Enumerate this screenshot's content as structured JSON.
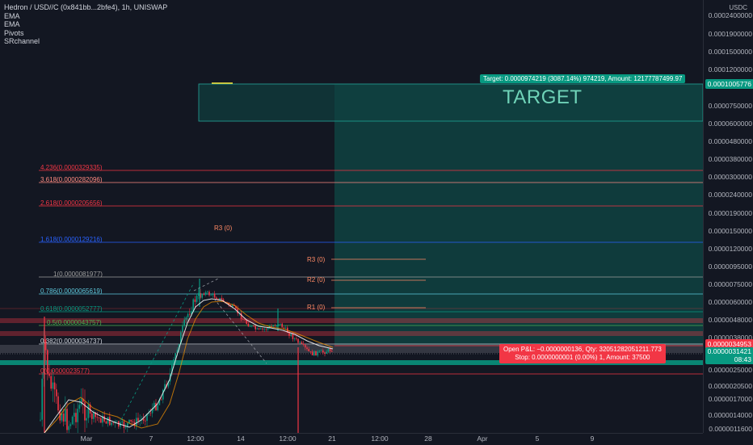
{
  "legend": {
    "title": "Hedron / USD//C (0x841bb...2bfe4), 1h, UNISWAP",
    "indicators": [
      "EMA",
      "EMA",
      "Pivots",
      "SRchannel"
    ]
  },
  "price_axis": {
    "unit": "USDC",
    "labels": [
      {
        "text": "0.0002400000"
      },
      {
        "text": "0.0001900000"
      },
      {
        "text": "0.0001500000"
      },
      {
        "text": "0.0001200000"
      },
      {
        "text": "0.0000750000"
      },
      {
        "text": "0.0000600000"
      },
      {
        "text": "0.0000480000"
      },
      {
        "text": "0.0000380000"
      },
      {
        "text": "0.0000300000"
      },
      {
        "text": "0.0000240000"
      },
      {
        "text": "0.0000190000"
      },
      {
        "text": "0.0000150000"
      },
      {
        "text": "0.0000120000"
      },
      {
        "text": "0.0000095000"
      },
      {
        "text": "0.0000075000"
      },
      {
        "text": "0.0000060000"
      },
      {
        "text": "0.0000048000"
      },
      {
        "text": "0.0000038000"
      },
      {
        "text": "0.0000025000"
      },
      {
        "text": "0.0000020500"
      },
      {
        "text": "0.0000017000"
      },
      {
        "text": "0.0000014000"
      },
      {
        "text": "0.0000011600"
      }
    ],
    "target_tag": "0.0001005776",
    "current_tag": "0.0000031421",
    "countdown": "08:43",
    "stop_tag": "0.0000034953"
  },
  "time_axis": {
    "labels": [
      "Mar",
      "7",
      "12:00",
      "14",
      "12:00",
      "21",
      "12:00",
      "28",
      "Apr",
      "5",
      "9"
    ]
  },
  "target": {
    "banner": "Target: 0.0000974219 (3087.14%) 974219, Amount: 12177787499.97",
    "label": "TARGET"
  },
  "position": {
    "line1": "Open P&L: −0.0000000136, Qty: 32051282051211.773",
    "line2": "Stop: 0.0000000001 (0.00%) 1, Amount: 37500"
  },
  "fibs": [
    {
      "text": "4.236(0.0000329335)",
      "color": "#f23645"
    },
    {
      "text": "3.618(0.0000282096)",
      "color": "#ff8a80"
    },
    {
      "text": "2.618(0.0000205656)",
      "color": "#f23645"
    },
    {
      "text": "1.618(0.0000129216)",
      "color": "#2962ff"
    },
    {
      "text": "1(0.0000081977)",
      "color": "#9e9e9e"
    },
    {
      "text": "0.786(0.0000065619)",
      "color": "#5ec8dc"
    },
    {
      "text": "0.618(0.0000052777)",
      "color": "#089981"
    },
    {
      "text": "0.5(0.0000043757)",
      "color": "#4caf50"
    },
    {
      "text": "0.382(0.0000034737)",
      "color": "#d1d4dc"
    },
    {
      "text": "0(0.0000023577)",
      "color": "#f23645"
    }
  ],
  "pivots": [
    "R3 (0)",
    "R3 (0)",
    "R2 (0)",
    "R1 (0)"
  ],
  "colors": {
    "background": "#131722",
    "up": "#089981",
    "down": "#f23645",
    "target_zone": "#0d4d42"
  }
}
